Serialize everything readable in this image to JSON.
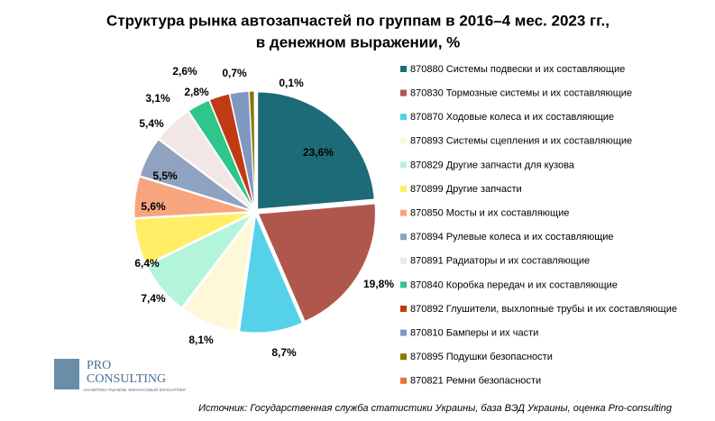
{
  "chart_data": {
    "type": "pie",
    "title": "Структура рынка автозапчастей по группам в 2016–4 мес. 2023 гг.,",
    "subtitle": "в денежном выражении, %",
    "categories": [
      "870880 Системы подвески и их составляющие",
      "870830 Тормозные системы и их составляющие",
      "870870 Ходовые колеса и их составляющие",
      "870893 Системы сцепления и их составляющие",
      "870829 Другие запчасти для кузова",
      "870899 Другие запчасти",
      "870850 Мосты и их составляющие",
      "870894 Рулевые колеса и их составляющие",
      "870891 Радиаторы и их составляющие",
      "870840 Коробка передач и их составляющие",
      "870892 Глушители, выхлопные трубы и их составляющие",
      "870810 Бамперы и их части",
      "870895 Подушки безопасности",
      "870821 Ремни безопасности"
    ],
    "values": [
      23.6,
      19.8,
      8.7,
      8.1,
      7.4,
      6.4,
      5.6,
      5.5,
      5.4,
      3.1,
      2.8,
      2.6,
      0.7,
      0.1
    ],
    "value_labels": [
      "23,6%",
      "19,8%",
      "8,7%",
      "8,1%",
      "7,4%",
      "6,4%",
      "5,6%",
      "5,5%",
      "5,4%",
      "3,1%",
      "2,8%",
      "2,6%",
      "0,7%",
      "0,1%"
    ],
    "colors": [
      "#1e6b78",
      "#b0574d",
      "#55d2e8",
      "#fff8d8",
      "#b2f5da",
      "#ffee66",
      "#f7a57f",
      "#8fa3c0",
      "#f3e6e6",
      "#2fc68c",
      "#c23a14",
      "#7f98c2",
      "#8a7800",
      "#e8743b"
    ],
    "source": "Источник: Государственная служба статистики Украины, база ВЭД Украины, оценка Pro-consulting",
    "logo": {
      "name_top": "PRO",
      "name_bottom": "CONSULTING",
      "tagline": "АНАЛИТИКА РЫНКОВ. ФИНАНСОВЫЙ КОНСАЛТИНГ"
    }
  }
}
